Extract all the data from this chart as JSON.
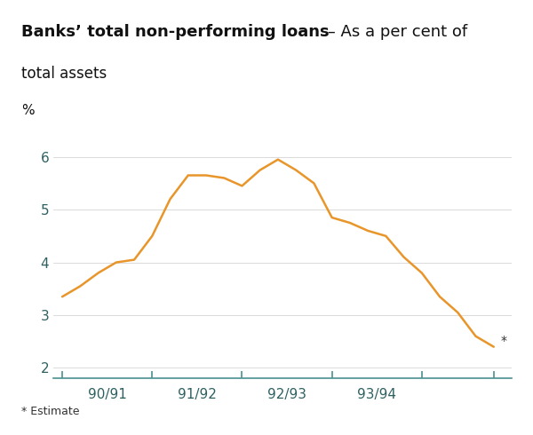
{
  "title_bold": "Banks’ total non-performing loans",
  "title_suffix": " – As a per cent of",
  "title_line2": "total assets",
  "ylabel": "%",
  "line_color": "#E8952A",
  "line_width": 1.8,
  "background_header": "#B2DFE0",
  "background_plot": "#FFFFFF",
  "x_values": [
    0,
    0.2,
    0.4,
    0.6,
    0.8,
    1.0,
    1.2,
    1.4,
    1.6,
    1.8,
    2.0,
    2.2,
    2.4,
    2.6,
    2.8,
    3.0,
    3.2,
    3.4,
    3.6,
    3.8,
    4.0,
    4.2,
    4.4,
    4.6,
    4.8
  ],
  "y_values": [
    3.35,
    3.55,
    3.8,
    4.0,
    4.05,
    4.5,
    5.2,
    5.65,
    5.65,
    5.6,
    5.45,
    5.75,
    5.95,
    5.75,
    5.5,
    4.85,
    4.75,
    4.6,
    4.5,
    4.1,
    3.8,
    3.35,
    3.05,
    2.6,
    2.4
  ],
  "xlim": [
    -0.1,
    5.0
  ],
  "ylim": [
    1.8,
    6.5
  ],
  "yticks": [
    2,
    3,
    4,
    5,
    6
  ],
  "xtick_positions": [
    0,
    1.0,
    2.0,
    3.0,
    4.0
  ],
  "xtick_labels": [
    "",
    "90/91",
    "91/92",
    "92/93",
    "93/94"
  ],
  "last_point_label": "*",
  "footnote": "* Estimate",
  "tick_color": "#4A9090",
  "axis_color": "#4A9090",
  "label_color": "#2E6060",
  "title_color": "#000000",
  "footnote_color": "#333333",
  "title_fontsize": 13,
  "axis_label_fontsize": 11,
  "tick_fontsize": 11,
  "footnote_fontsize": 9
}
